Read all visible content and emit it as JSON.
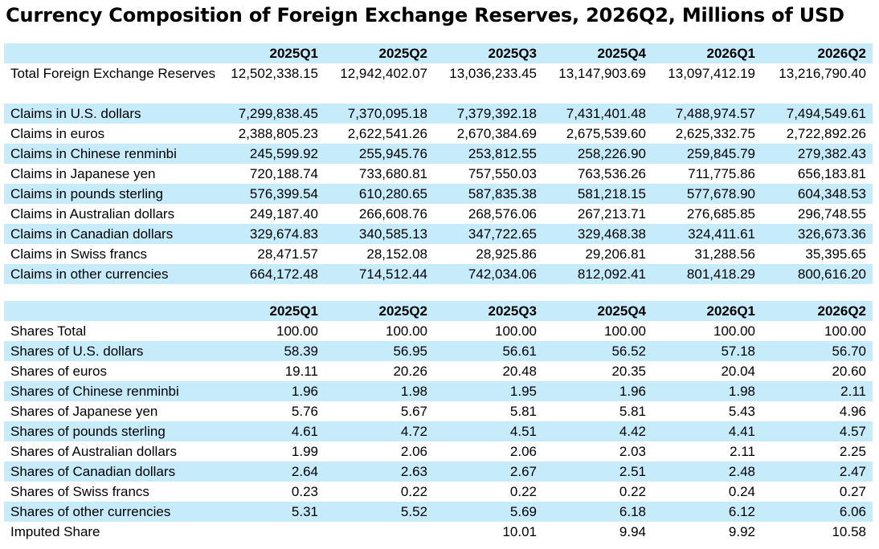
{
  "title": "Currency Composition of Foreign Exchange Reserves, 2026Q2, Millions of USD",
  "columns": [
    "2025Q1",
    "2025Q2",
    "2025Q3",
    "2025Q4",
    "2026Q1",
    "2026Q2"
  ],
  "claims": [
    {
      "label": "Total Foreign Exchange Reserves",
      "values": [
        "12,502,338.15",
        "12,942,402.07",
        "13,036,233.45",
        "13,147,903.69",
        "13,097,412.19",
        "13,216,790.40"
      ]
    },
    {
      "label": "Claims in U.S. dollars",
      "values": [
        "7,299,838.45",
        "7,370,095.18",
        "7,379,392.18",
        "7,431,401.48",
        "7,488,974.57",
        "7,494,549.61"
      ]
    },
    {
      "label": "Claims in euros",
      "values": [
        "2,388,805.23",
        "2,622,541.26",
        "2,670,384.69",
        "2,675,539.60",
        "2,625,332.75",
        "2,722,892.26"
      ]
    },
    {
      "label": "Claims in Chinese renminbi",
      "values": [
        "245,599.92",
        "255,945.76",
        "253,812.55",
        "258,226.90",
        "259,845.79",
        "279,382.43"
      ]
    },
    {
      "label": "Claims in Japanese yen",
      "values": [
        "720,188.74",
        "733,680.81",
        "757,550.03",
        "763,536.26",
        "711,775.86",
        "656,183.81"
      ]
    },
    {
      "label": "Claims in pounds sterling",
      "values": [
        "576,399.54",
        "610,280.65",
        "587,835.38",
        "581,218.15",
        "577,678.90",
        "604,348.53"
      ]
    },
    {
      "label": "Claims in Australian dollars",
      "values": [
        "249,187.40",
        "266,608.76",
        "268,576.06",
        "267,213.71",
        "276,685.85",
        "296,748.55"
      ]
    },
    {
      "label": "Claims in Canadian dollars",
      "values": [
        "329,674.83",
        "340,585.13",
        "347,722.65",
        "329,468.38",
        "324,411.61",
        "326,673.36"
      ]
    },
    {
      "label": "Claims in Swiss francs",
      "values": [
        "28,471.57",
        "28,152.08",
        "28,925.86",
        "29,206.81",
        "31,288.56",
        "35,395.65"
      ]
    },
    {
      "label": "Claims in other currencies",
      "values": [
        "664,172.48",
        "714,512.44",
        "742,034.06",
        "812,092.41",
        "801,418.29",
        "800,616.20"
      ]
    }
  ],
  "shares": [
    {
      "label": "Shares Total",
      "values": [
        "100.00",
        "100.00",
        "100.00",
        "100.00",
        "100.00",
        "100.00"
      ]
    },
    {
      "label": "Shares of U.S. dollars",
      "values": [
        "58.39",
        "56.95",
        "56.61",
        "56.52",
        "57.18",
        "56.70"
      ]
    },
    {
      "label": "Shares of euros",
      "values": [
        "19.11",
        "20.26",
        "20.48",
        "20.35",
        "20.04",
        "20.60"
      ]
    },
    {
      "label": "Shares of Chinese renminbi",
      "values": [
        "1.96",
        "1.98",
        "1.95",
        "1.96",
        "1.98",
        "2.11"
      ]
    },
    {
      "label": "Shares of Japanese yen",
      "values": [
        "5.76",
        "5.67",
        "5.81",
        "5.81",
        "5.43",
        "4.96"
      ]
    },
    {
      "label": "Shares of pounds sterling",
      "values": [
        "4.61",
        "4.72",
        "4.51",
        "4.42",
        "4.41",
        "4.57"
      ]
    },
    {
      "label": "Shares of Australian dollars",
      "values": [
        "1.99",
        "2.06",
        "2.06",
        "2.03",
        "2.11",
        "2.25"
      ]
    },
    {
      "label": "Shares of Canadian dollars",
      "values": [
        "2.64",
        "2.63",
        "2.67",
        "2.51",
        "2.48",
        "2.47"
      ]
    },
    {
      "label": "Shares of Swiss francs",
      "values": [
        "0.23",
        "0.22",
        "0.22",
        "0.22",
        "0.24",
        "0.27"
      ]
    },
    {
      "label": "Shares of other currencies",
      "values": [
        "5.31",
        "5.52",
        "5.69",
        "6.18",
        "6.12",
        "6.06"
      ]
    },
    {
      "label": "Imputed Share",
      "values": [
        "",
        "",
        "10.01",
        "9.94",
        "9.92",
        "10.58"
      ]
    }
  ],
  "colors": {
    "band": "#c6ebfb",
    "background": "#ffffff",
    "text": "#000000"
  }
}
